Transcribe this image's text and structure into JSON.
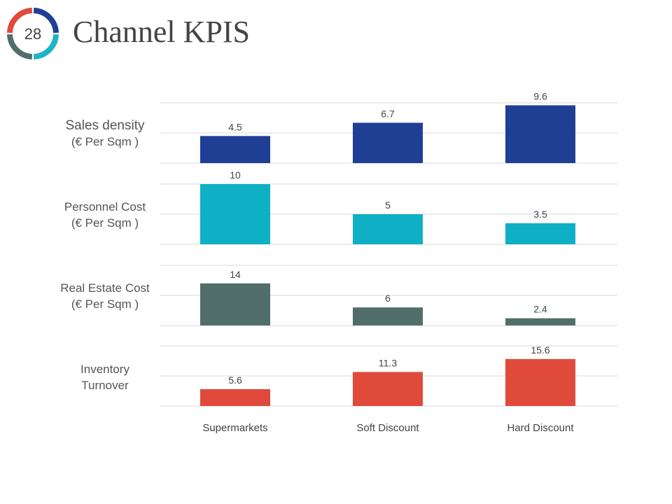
{
  "slide": {
    "number": "28",
    "title": "Channel KPIS",
    "badge_colors": [
      "#e04a3a",
      "#1f3f95",
      "#1fb3c6",
      "#526e6b"
    ]
  },
  "chart_data": {
    "type": "bar",
    "title": "Channel KPIS",
    "categories": [
      "Supermarkets",
      "Soft Discount",
      "Hard Discount"
    ],
    "panels": [
      {
        "label_line1": "Sales density",
        "label_line2": "(€ Per Sqm )",
        "values": [
          4.5,
          6.7,
          9.6
        ],
        "labels": [
          "4.5",
          "6.7",
          "9.6"
        ],
        "color": "#1f3f95",
        "ylim": [
          0,
          10
        ]
      },
      {
        "label_line1": "Personnel Cost",
        "label_line2": "(€ Per Sqm )",
        "values": [
          10,
          5,
          3.5
        ],
        "labels": [
          "10",
          "5",
          "3.5"
        ],
        "color": "#0fb0c5",
        "ylim": [
          0,
          10
        ]
      },
      {
        "label_line1": "Real Estate Cost",
        "label_line2": "(€ Per Sqm )",
        "values": [
          14,
          6,
          2.4
        ],
        "labels": [
          "14",
          "6",
          "2.4"
        ],
        "color": "#526e6b",
        "ylim": [
          0,
          20
        ]
      },
      {
        "label_line1": "Inventory",
        "label_line2": "Turnover",
        "values": [
          5.6,
          11.3,
          15.6
        ],
        "labels": [
          "5.6",
          "11.3",
          "15.6"
        ],
        "color": "#e04a3a",
        "ylim": [
          0,
          20
        ]
      }
    ],
    "legend": "none",
    "grid": true
  }
}
